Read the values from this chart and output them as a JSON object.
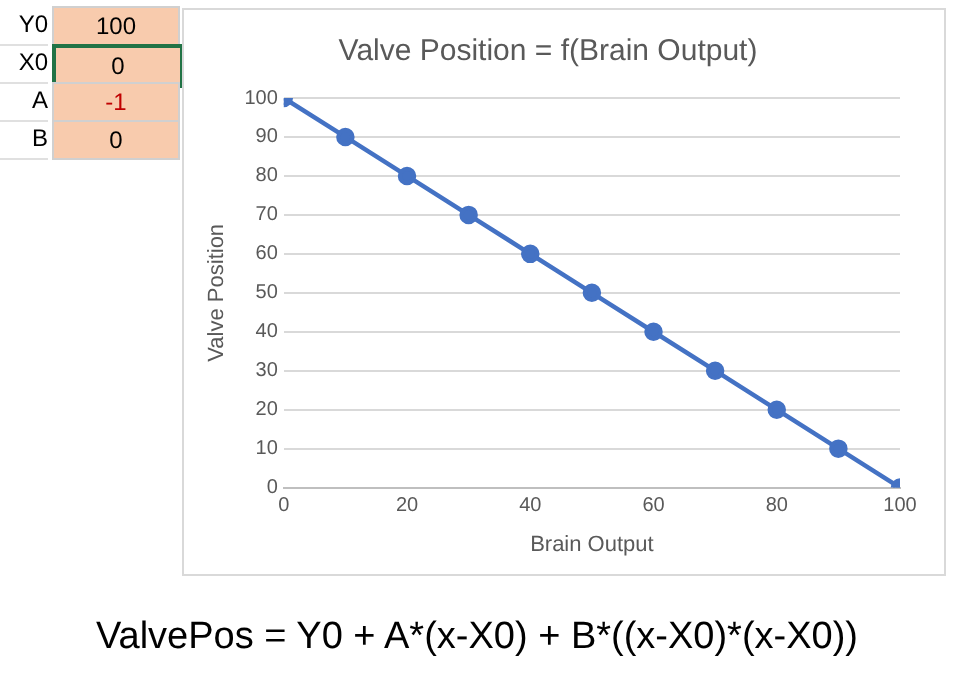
{
  "chart_data": {
    "type": "line",
    "title": "Valve Position = f(Brain Output)",
    "xlabel": "Brain Output",
    "ylabel": "Valve Position",
    "x": [
      0,
      10,
      20,
      30,
      40,
      50,
      60,
      70,
      80,
      90,
      100
    ],
    "series": [
      {
        "color": "#4472c4",
        "values": [
          100,
          90,
          80,
          70,
          60,
          50,
          40,
          30,
          20,
          10,
          0
        ]
      }
    ],
    "xlim": [
      0,
      100
    ],
    "xticks": [
      0,
      20,
      40,
      60,
      80,
      100
    ],
    "ylim": [
      0,
      100
    ],
    "yticks": [
      0,
      10,
      20,
      30,
      40,
      50,
      60,
      70,
      80,
      90,
      100
    ],
    "grid": "y",
    "legend": false,
    "marker": "circle",
    "line_style": "solid",
    "annotations": [
      "Y0",
      "100",
      "X0",
      "0",
      "A",
      "-1",
      "B",
      "0",
      "ValvePos = Y0 + A*(x-X0) + B*((x-X0)*(x-X0))"
    ]
  }
}
